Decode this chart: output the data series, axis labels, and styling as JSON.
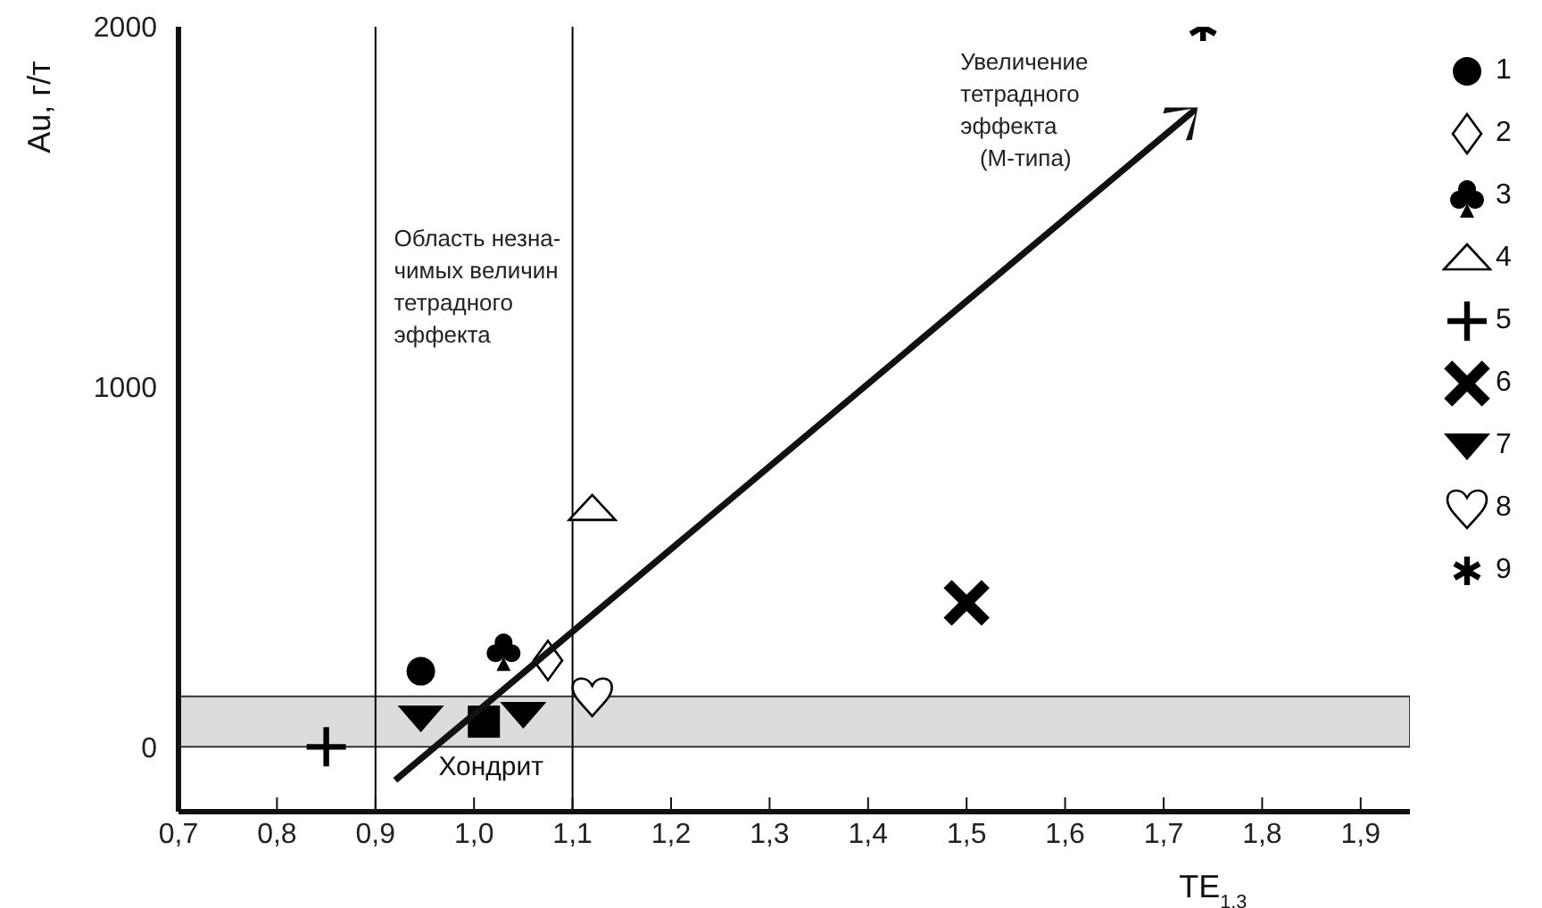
{
  "chart_data": {
    "type": "scatter",
    "xlabel": "TE$_{1.3}$",
    "ylabel": "Au, г/т",
    "xlim": [
      0.7,
      1.95
    ],
    "ylim": [
      -180,
      2000
    ],
    "xticks": [
      {
        "value": 0.7,
        "label": "0,7"
      },
      {
        "value": 0.8,
        "label": "0,8"
      },
      {
        "value": 0.9,
        "label": "0,9"
      },
      {
        "value": 1.0,
        "label": "1,0"
      },
      {
        "value": 1.1,
        "label": "1,1"
      },
      {
        "value": 1.2,
        "label": "1,2"
      },
      {
        "value": 1.3,
        "label": "1,3"
      },
      {
        "value": 1.4,
        "label": "1,4"
      },
      {
        "value": 1.5,
        "label": "1,5"
      },
      {
        "value": 1.6,
        "label": "1,6"
      },
      {
        "value": 1.7,
        "label": "1,7"
      },
      {
        "value": 1.8,
        "label": "1,8"
      },
      {
        "value": 1.9,
        "label": "1,9"
      }
    ],
    "yticks": [
      0,
      1000,
      2000
    ],
    "grid": false,
    "legend": "right",
    "series": [
      {
        "name": "1",
        "color": "#000000",
        "marker": "circle",
        "x": [
          0.946
        ],
        "values": [
          210
        ]
      },
      {
        "name": "2",
        "color": "#000000",
        "marker": "diamond",
        "x": [
          1.075
        ],
        "values": [
          240
        ]
      },
      {
        "name": "3",
        "color": "#000000",
        "x": [
          1.03
        ],
        "values": [
          270
        ]
      },
      {
        "name": "4",
        "color": "#000000",
        "marker": "triangle",
        "x": [
          1.12
        ],
        "values": [
          660
        ]
      },
      {
        "name": "5",
        "color": "#000000",
        "marker": "cross",
        "x": [
          0.85
        ],
        "values": [
          0
        ]
      },
      {
        "name": "6",
        "color": "#000000",
        "x": [
          1.5
        ],
        "values": [
          400
        ]
      },
      {
        "name": "7",
        "color": "#000000",
        "x": [
          0.946,
          1.05
        ],
        "values": [
          80,
          90
        ]
      },
      {
        "name": "8",
        "color": "#000000",
        "x": [
          1.12
        ],
        "values": [
          140
        ]
      },
      {
        "name": "9",
        "color": "#000000",
        "x": [
          1.74
        ],
        "values": [
          2000
        ]
      },
      {
        "color": "#000000",
        "marker": "square",
        "x": [
          1.01
        ],
        "values": [
          70
        ],
        "value_labels": [
          "Хондрит"
        ]
      }
    ],
    "ref_lines": [
      {
        "axis": "x",
        "value": 0.9,
        "color": "#000000"
      },
      {
        "axis": "x",
        "value": 1.1,
        "color": "#000000"
      }
    ],
    "bands": [
      {
        "axis": "y",
        "from": 0,
        "to": 140,
        "color": "#dcdcdc"
      }
    ],
    "annotations": [
      "Область незна-\nчимых величин\nтетрадного\nэффекта",
      "Увеличение\nтетрадного\nэффекта\n   (М-типа)"
    ]
  }
}
